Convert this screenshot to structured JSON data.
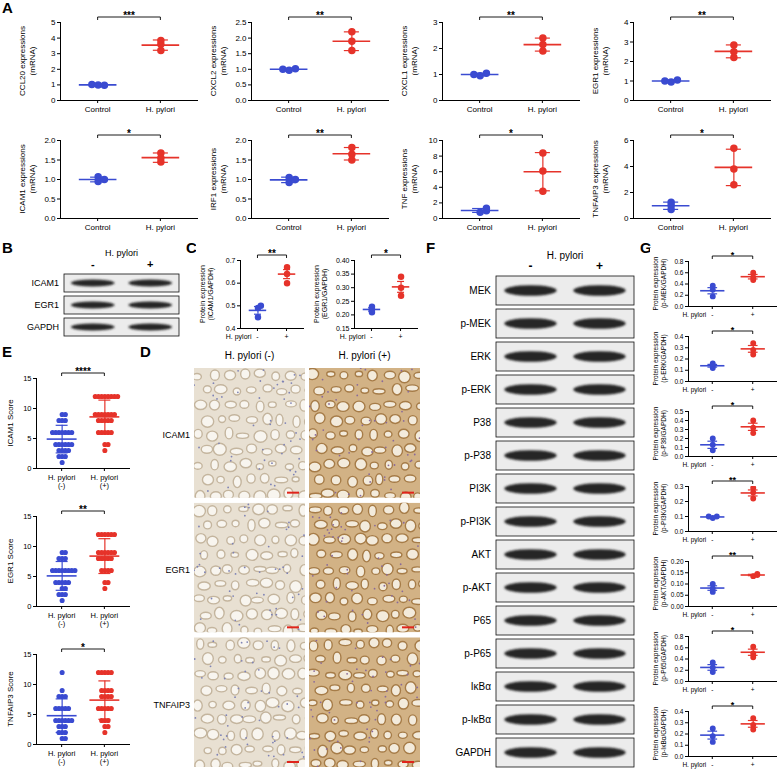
{
  "chart_data": [
    {
      "panel": "A",
      "type": "scatter",
      "ylabel": "CCL20 expressions(mRNA)",
      "categories": [
        "Control",
        "H. pylori"
      ],
      "values": [
        [
          1.0,
          0.98,
          1.02
        ],
        [
          3.2,
          3.6,
          3.85
        ]
      ],
      "means": [
        1.0,
        3.55
      ],
      "errors": [
        0.02,
        0.33
      ],
      "colors": [
        "#3a4bd1",
        "#e6332a"
      ],
      "ylim": [
        0,
        5
      ],
      "yticks": [
        0,
        1,
        2,
        3,
        4,
        5
      ],
      "annotation": "***"
    },
    {
      "panel": "A",
      "type": "scatter",
      "ylabel": "CXCL2 expressions(mRNA)",
      "categories": [
        "Control",
        "H. pylori"
      ],
      "values": [
        [
          0.97,
          1.02,
          1.0
        ],
        [
          1.6,
          1.9,
          2.2
        ]
      ],
      "means": [
        1.0,
        1.9
      ],
      "errors": [
        0.03,
        0.3
      ],
      "colors": [
        "#3a4bd1",
        "#e6332a"
      ],
      "ylim": [
        0,
        2.5
      ],
      "yticks": [
        {
          "value": 0,
          "label": "0.0"
        },
        0.5,
        {
          "value": 1,
          "label": "1.0"
        },
        1.5,
        {
          "value": 2,
          "label": "2.0"
        },
        2.5
      ],
      "annotation": "**"
    },
    {
      "panel": "A",
      "type": "scatter",
      "ylabel": "CXCL1 expressions(mRNA)",
      "categories": [
        "Control",
        "H. pylori"
      ],
      "values": [
        [
          0.95,
          1.05,
          1.0
        ],
        [
          1.9,
          2.15,
          2.4
        ]
      ],
      "means": [
        1.0,
        2.15
      ],
      "errors": [
        0.05,
        0.25
      ],
      "colors": [
        "#3a4bd1",
        "#e6332a"
      ],
      "ylim": [
        0,
        3
      ],
      "yticks": [
        0,
        1,
        2,
        3
      ],
      "annotation": "**"
    },
    {
      "panel": "A",
      "type": "scatter",
      "ylabel": "EGR1 expressions(mRNA)",
      "categories": [
        "Control",
        "H. pylori"
      ],
      "values": [
        [
          0.95,
          1.05,
          1.0
        ],
        [
          2.2,
          2.5,
          2.85
        ]
      ],
      "means": [
        1.0,
        2.52
      ],
      "errors": [
        0.05,
        0.33
      ],
      "colors": [
        "#3a4bd1",
        "#e6332a"
      ],
      "ylim": [
        0,
        4
      ],
      "yticks": [
        0,
        1,
        2,
        3,
        4
      ],
      "annotation": "**"
    },
    {
      "panel": "A",
      "type": "scatter",
      "ylabel": "ICAM1 expressions(mRNA)",
      "categories": [
        "Control",
        "H. pylori"
      ],
      "values": [
        [
          0.95,
          1.07,
          1.0
        ],
        [
          1.45,
          1.55,
          1.68
        ]
      ],
      "means": [
        1.0,
        1.56
      ],
      "errors": [
        0.06,
        0.12
      ],
      "colors": [
        "#3a4bd1",
        "#e6332a"
      ],
      "ylim": [
        0,
        2
      ],
      "yticks": [
        {
          "value": 0,
          "label": "0.0"
        },
        0.5,
        {
          "value": 1,
          "label": "1.0"
        },
        1.5,
        {
          "value": 2,
          "label": "2.0"
        }
      ],
      "annotation": "*"
    },
    {
      "panel": "A",
      "type": "scatter",
      "ylabel": "IRF1 expressions(mRNA)",
      "categories": [
        "Control",
        "H. pylori"
      ],
      "values": [
        [
          0.92,
          1.05,
          1.0
        ],
        [
          1.5,
          1.65,
          1.82
        ]
      ],
      "means": [
        0.99,
        1.66
      ],
      "errors": [
        0.07,
        0.16
      ],
      "colors": [
        "#3a4bd1",
        "#e6332a"
      ],
      "ylim": [
        0,
        2
      ],
      "yticks": [
        {
          "value": 0,
          "label": "0.0"
        },
        0.5,
        {
          "value": 1,
          "label": "1.0"
        },
        1.5,
        {
          "value": 2,
          "label": "2.0"
        }
      ],
      "annotation": "**"
    },
    {
      "panel": "A",
      "type": "scatter",
      "ylabel": "TNF expressions(mRNA)",
      "categories": [
        "Control",
        "H. pylori"
      ],
      "values": [
        [
          0.8,
          1.0,
          1.3
        ],
        [
          3.5,
          6.1,
          8.4
        ]
      ],
      "means": [
        1.03,
        6.0
      ],
      "errors": [
        0.25,
        2.45
      ],
      "colors": [
        "#3a4bd1",
        "#e6332a"
      ],
      "ylim": [
        0,
        10
      ],
      "yticks": [
        0,
        2,
        4,
        6,
        8,
        10
      ],
      "annotation": "*"
    },
    {
      "panel": "A",
      "type": "scatter",
      "ylabel": "TNFAIP3 expressions(mRNA)",
      "categories": [
        "Control",
        "H. pylori"
      ],
      "values": [
        [
          0.7,
          1.0,
          1.25
        ],
        [
          2.6,
          3.8,
          5.4
        ]
      ],
      "means": [
        0.98,
        3.93
      ],
      "errors": [
        0.28,
        1.4
      ],
      "colors": [
        "#3a4bd1",
        "#e6332a"
      ],
      "ylim": [
        0,
        6
      ],
      "yticks": [
        0,
        2,
        4,
        6
      ],
      "annotation": "*"
    },
    {
      "panel": "C",
      "type": "scatter",
      "ylabel": "Protein expression (ICAM1/GAPDH)",
      "xlabel": "H. pylori",
      "categories": [
        "-",
        "+"
      ],
      "values": [
        [
          0.45,
          0.49,
          0.5
        ],
        [
          0.6,
          0.64,
          0.67
        ]
      ],
      "means": [
        0.48,
        0.64
      ],
      "errors": [
        0.017,
        0.02
      ],
      "colors": [
        "#3a4bd1",
        "#e6332a"
      ],
      "ylim": [
        0.4,
        0.7
      ],
      "yticks": [
        0.4,
        0.5,
        0.6,
        0.7
      ],
      "annotation": "**"
    },
    {
      "panel": "C",
      "type": "scatter",
      "ylabel": "Protein expression (EGR1/GAPDH)",
      "xlabel": "H. pylori",
      "categories": [
        "-",
        "+"
      ],
      "values": [
        [
          0.21,
          0.22,
          0.23
        ],
        [
          0.27,
          0.3,
          0.34
        ]
      ],
      "means": [
        0.22,
        0.303
      ],
      "errors": [
        0.006,
        0.02
      ],
      "colors": [
        "#3a4bd1",
        "#e6332a"
      ],
      "ylim": [
        0.15,
        0.4
      ],
      "yticks": [
        0.15,
        {
          "value": 0.2,
          "label": "0.20"
        },
        0.25,
        {
          "value": 0.3,
          "label": "0.30"
        },
        0.35,
        {
          "value": 0.4,
          "label": "0.40"
        }
      ],
      "annotation": "*"
    },
    {
      "panel": "E",
      "type": "scatter",
      "ylabel": "ICAM1 Score",
      "categories": [
        "H. pylori (-)",
        "H. pylori (+)"
      ],
      "values": [
        [
          2,
          3,
          4,
          4,
          6,
          6,
          3,
          8,
          6,
          2,
          4,
          9,
          6,
          4,
          3,
          6,
          8,
          1,
          4,
          6,
          2,
          9,
          6,
          4,
          3,
          8
        ],
        [
          6,
          8,
          9,
          12,
          12,
          9,
          8,
          6,
          12,
          9,
          4,
          8,
          12,
          9,
          6,
          12,
          8,
          9,
          3,
          12,
          9,
          6,
          8,
          12,
          9,
          6,
          4,
          12
        ]
      ],
      "means": [
        4.9,
        8.6
      ],
      "errors": [
        2.3,
        2.8
      ],
      "colors": [
        "#3a4bd1",
        "#e6332a"
      ],
      "ylim": [
        0,
        15
      ],
      "yticks": [
        0,
        5,
        10,
        15
      ],
      "annotation": "****"
    },
    {
      "panel": "E",
      "type": "scatter",
      "ylabel": "EGR1 Score",
      "categories": [
        "H. pylori (-)",
        "H. pylori (+)"
      ],
      "values": [
        [
          4,
          6,
          2,
          6,
          8,
          4,
          3,
          6,
          9,
          4,
          6,
          2,
          8,
          6,
          4,
          1,
          6,
          3,
          9,
          6,
          4,
          8,
          2,
          6
        ],
        [
          8,
          9,
          12,
          6,
          8,
          12,
          9,
          4,
          6,
          12,
          9,
          8,
          3,
          12,
          6,
          9,
          8,
          12,
          6,
          9,
          4,
          12,
          8,
          9
        ]
      ],
      "means": [
        5.1,
        8.4
      ],
      "errors": [
        2.4,
        2.9
      ],
      "colors": [
        "#3a4bd1",
        "#e6332a"
      ],
      "ylim": [
        0,
        15
      ],
      "yticks": [
        0,
        5,
        10,
        15
      ],
      "annotation": "**"
    },
    {
      "panel": "E",
      "type": "scatter",
      "ylabel": "TNFAIP3 Score",
      "categories": [
        "H. pylori (-)",
        "H. pylori (+)"
      ],
      "values": [
        [
          2,
          4,
          6,
          3,
          8,
          4,
          1,
          6,
          9,
          4,
          2,
          6,
          8,
          3,
          4,
          6,
          12,
          2,
          4,
          6,
          3,
          8,
          4,
          1
        ],
        [
          4,
          8,
          12,
          6,
          9,
          3,
          8,
          12,
          6,
          9,
          4,
          12,
          6,
          8,
          2,
          9,
          12,
          6,
          8,
          4,
          9,
          6,
          12,
          3
        ]
      ],
      "means": [
        4.8,
        7.4
      ],
      "errors": [
        2.8,
        3.2
      ],
      "colors": [
        "#3a4bd1",
        "#e6332a"
      ],
      "ylim": [
        0,
        15
      ],
      "yticks": [
        0,
        5,
        10,
        15
      ],
      "annotation": "*"
    },
    {
      "panel": "G",
      "type": "scatter",
      "ylabel": "Protein expression (p-MEK/GAPDH)",
      "xlabel": "H. pylori",
      "categories": [
        "-",
        "+"
      ],
      "values": [
        [
          0.18,
          0.3,
          0.37
        ],
        [
          0.47,
          0.52,
          0.6
        ]
      ],
      "means": [
        0.28,
        0.53
      ],
      "errors": [
        0.055,
        0.04
      ],
      "colors": [
        "#3a4bd1",
        "#e6332a"
      ],
      "ylim": [
        0,
        0.8
      ],
      "yticks": [
        {
          "value": 0,
          "label": "0.0"
        },
        0.2,
        0.4,
        0.6,
        0.8
      ],
      "annotation": "*"
    },
    {
      "panel": "G",
      "type": "scatter",
      "ylabel": "Protein expression (p-ERK/GAPDH)",
      "xlabel": "H. pylori",
      "categories": [
        "-",
        "+"
      ],
      "values": [
        [
          0.12,
          0.14,
          0.16
        ],
        [
          0.24,
          0.28,
          0.34
        ]
      ],
      "means": [
        0.14,
        0.29
      ],
      "errors": [
        0.012,
        0.03
      ],
      "colors": [
        "#3a4bd1",
        "#e6332a"
      ],
      "ylim": [
        0,
        0.4
      ],
      "yticks": [
        {
          "value": 0,
          "label": "0.0"
        },
        0.1,
        0.2,
        0.3,
        0.4
      ],
      "annotation": "*"
    },
    {
      "panel": "G",
      "type": "scatter",
      "ylabel": "Protein expression (p-P38/GAPDH)",
      "xlabel": "H. pylori",
      "categories": [
        "-",
        "+"
      ],
      "values": [
        [
          0.07,
          0.13,
          0.2
        ],
        [
          0.26,
          0.32,
          0.4
        ]
      ],
      "means": [
        0.13,
        0.33
      ],
      "errors": [
        0.04,
        0.04
      ],
      "colors": [
        "#3a4bd1",
        "#e6332a"
      ],
      "ylim": [
        0,
        0.5
      ],
      "yticks": [
        {
          "value": 0,
          "label": "0.0"
        },
        0.1,
        0.2,
        0.3,
        0.4,
        0.5
      ],
      "annotation": "*"
    },
    {
      "panel": "G",
      "type": "scatter",
      "ylabel": "Protein expression (p-PI3K/GAPDH)",
      "xlabel": "H. pylori",
      "categories": [
        "-",
        "+"
      ],
      "values": [
        [
          0.09,
          0.1,
          0.1
        ],
        [
          0.22,
          0.26,
          0.29
        ]
      ],
      "means": [
        0.097,
        0.257
      ],
      "errors": [
        0.003,
        0.02
      ],
      "colors": [
        "#3a4bd1",
        "#e6332a"
      ],
      "ylim": [
        0,
        0.3
      ],
      "yticks": [
        {
          "value": 0,
          "label": "0.0"
        },
        0.1,
        0.2,
        0.3
      ],
      "annotation": "**"
    },
    {
      "panel": "G",
      "type": "scatter",
      "ylabel": "Protein expression (p-AKT/GAPDH)",
      "xlabel": "H. pylori",
      "categories": [
        "-",
        "+"
      ],
      "values": [
        [
          0.065,
          0.08,
          0.1
        ],
        [
          0.135,
          0.14,
          0.145
        ]
      ],
      "means": [
        0.082,
        0.14
      ],
      "errors": [
        0.01,
        0.003
      ],
      "colors": [
        "#3a4bd1",
        "#e6332a"
      ],
      "ylim": [
        0,
        0.2
      ],
      "yticks": [
        {
          "value": 0,
          "label": "0.00"
        },
        0.05,
        {
          "value": 0.1,
          "label": "0.10"
        },
        0.15,
        {
          "value": 0.2,
          "label": "0.20"
        }
      ],
      "annotation": "**"
    },
    {
      "panel": "G",
      "type": "scatter",
      "ylabel": "Protein expression (p-P65/GAPDH)",
      "xlabel": "H. pylori",
      "categories": [
        "-",
        "+"
      ],
      "values": [
        [
          0.17,
          0.25,
          0.34
        ],
        [
          0.43,
          0.5,
          0.62
        ]
      ],
      "means": [
        0.25,
        0.52
      ],
      "errors": [
        0.05,
        0.055
      ],
      "colors": [
        "#3a4bd1",
        "#e6332a"
      ],
      "ylim": [
        0,
        0.8
      ],
      "yticks": [
        {
          "value": 0,
          "label": "0.0"
        },
        0.2,
        0.4,
        0.6,
        0.8
      ],
      "annotation": "*"
    },
    {
      "panel": "G",
      "type": "scatter",
      "ylabel": "Protein expression (p-IκBα/GAPDH)",
      "xlabel": "H. pylori",
      "categories": [
        "-",
        "+"
      ],
      "values": [
        [
          0.13,
          0.18,
          0.25
        ],
        [
          0.24,
          0.28,
          0.34
        ]
      ],
      "means": [
        0.19,
        0.29
      ],
      "errors": [
        0.035,
        0.03
      ],
      "colors": [
        "#3a4bd1",
        "#e6332a"
      ],
      "ylim": [
        0,
        0.4
      ],
      "yticks": [
        {
          "value": 0,
          "label": "0.0"
        },
        0.1,
        0.2,
        0.3,
        0.4
      ],
      "annotation": "*"
    }
  ],
  "blots": [
    {
      "panel": "B",
      "header": "H. pylori",
      "lanes": [
        "-",
        "+"
      ],
      "rows": [
        "ICAM1",
        "EGR1",
        "GAPDH"
      ]
    },
    {
      "panel": "F",
      "header": "H. pylori",
      "lanes": [
        "-",
        "+"
      ],
      "rows": [
        "MEK",
        "p-MEK",
        "ERK",
        "p-ERK",
        "P38",
        "p-P38",
        "PI3K",
        "p-PI3K",
        "AKT",
        "p-AKT",
        "P65",
        "p-P65",
        "IκBα",
        "p-IκBα",
        "GAPDH"
      ]
    }
  ],
  "ihc": {
    "panel": "D",
    "columns": [
      "H. pylori (-)",
      "H. pylori (+)"
    ],
    "rows": [
      "ICAM1",
      "EGR1",
      "TNFAIP3"
    ]
  }
}
